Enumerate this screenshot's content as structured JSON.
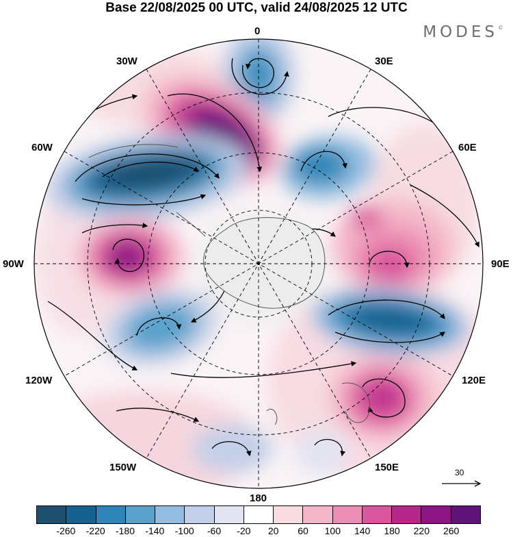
{
  "title": "Base 22/08/2025 00 UTC, valid 24/08/2025 12 UTC",
  "brand": "MODES",
  "brand_mark": "©",
  "lon_labels": {
    "l0": "0",
    "l30e": "30E",
    "l60e": "60E",
    "l90e": "90E",
    "l120e": "120E",
    "l150e": "150E",
    "l180": "180",
    "l150w": "150W",
    "l120w": "120W",
    "l90w": "90W",
    "l60w": "60W",
    "l30w": "30W"
  },
  "reference_vector": "30",
  "colorbar": {
    "colors": [
      "#1f4f6e",
      "#16618f",
      "#2e86b8",
      "#5aa2cc",
      "#92bde0",
      "#c3cfe8",
      "#e3e4f2",
      "#ffffff",
      "#f7dde2",
      "#f4b7c9",
      "#ec8fb4",
      "#d9559c",
      "#b5288a",
      "#8c1583",
      "#5f1278"
    ],
    "ticks": [
      "-260",
      "-220",
      "-180",
      "-140",
      "-100",
      "-60",
      "-20",
      "20",
      "60",
      "100",
      "140",
      "180",
      "220",
      "260"
    ]
  }
}
